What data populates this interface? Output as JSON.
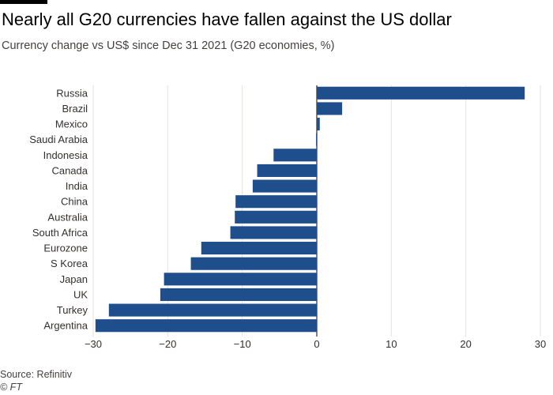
{
  "header": {
    "title": "Nearly all G20 currencies have fallen against the US dollar",
    "subtitle": "Currency change vs US$ since Dec 31 2021 (G20 economies, %)"
  },
  "footer": {
    "source": "Source: Refinitiv",
    "credit": "© FT"
  },
  "colors": {
    "bar": "#1f4e8c",
    "grid": "#e6e2dc",
    "zero": "#000000"
  },
  "chart_data": {
    "type": "bar",
    "orientation": "horizontal",
    "title": "Nearly all G20 currencies have fallen against the US dollar",
    "subtitle": "Currency change vs US$ since Dec 31 2021 (G20 economies, %)",
    "xlabel": "",
    "ylabel": "",
    "xlim": [
      -30,
      30
    ],
    "ticks": [
      -30,
      -20,
      -10,
      0,
      10,
      20,
      30
    ],
    "grid": true,
    "categories": [
      "Russia",
      "Brazil",
      "Mexico",
      "Saudi Arabia",
      "Indonesia",
      "Canada",
      "India",
      "China",
      "Australia",
      "South Africa",
      "Eurozone",
      "S Korea",
      "Japan",
      "UK",
      "Turkey",
      "Argentina"
    ],
    "values": [
      27.9,
      3.4,
      0.4,
      -0.1,
      -5.8,
      -8.0,
      -8.6,
      -10.9,
      -11.0,
      -11.6,
      -15.5,
      -16.9,
      -20.5,
      -21.0,
      -27.9,
      -29.7
    ]
  }
}
